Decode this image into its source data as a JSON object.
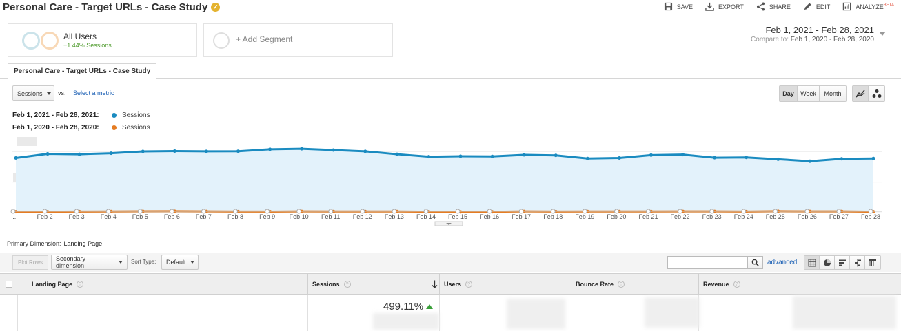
{
  "header": {
    "title": "Personal Care - Target URLs - Case Study",
    "actions": [
      {
        "label": "SAVE",
        "icon": "save-icon"
      },
      {
        "label": "EXPORT",
        "icon": "export-icon"
      },
      {
        "label": "SHARE",
        "icon": "share-icon"
      },
      {
        "label": "EDIT",
        "icon": "edit-icon"
      },
      {
        "label": "ANALYZE",
        "sup": "BETA",
        "icon": "analyze-icon"
      }
    ]
  },
  "segments": {
    "all_users": {
      "name": "All Users",
      "sub": "+1.44% Sessions"
    },
    "add_segment": "+ Add Segment"
  },
  "date_range": {
    "main": "Feb 1, 2021 - Feb 28, 2021",
    "compare_label": "Compare to:",
    "compare_range": "Feb 1, 2020 - Feb 28, 2020"
  },
  "tab": {
    "label": "Personal Care - Target URLs - Case Study"
  },
  "metrics": {
    "primary": "Sessions",
    "vs": "vs.",
    "select_metric": "Select a metric"
  },
  "granularity": {
    "options": [
      "Day",
      "Week",
      "Month"
    ],
    "active": "Day"
  },
  "legend": [
    {
      "range": "Feb 1, 2021 - Feb 28, 2021:",
      "series": "Sessions",
      "color": "#1a8bc0"
    },
    {
      "range": "Feb 1, 2020 - Feb 28, 2020:",
      "series": "Sessions",
      "color": "#e57c22"
    }
  ],
  "chart_data": {
    "type": "line",
    "x": [
      "...",
      "Feb 2",
      "Feb 3",
      "Feb 4",
      "Feb 5",
      "Feb 6",
      "Feb 7",
      "Feb 8",
      "Feb 9",
      "Feb 10",
      "Feb 11",
      "Feb 12",
      "Feb 13",
      "Feb 14",
      "Feb 15",
      "Feb 16",
      "Feb 17",
      "Feb 18",
      "Feb 19",
      "Feb 20",
      "Feb 21",
      "Feb 22",
      "Feb 23",
      "Feb 24",
      "Feb 25",
      "Feb 26",
      "Feb 27",
      "Feb 28"
    ],
    "series": [
      {
        "name": "Sessions",
        "values": [
          1075,
          1155,
          1148,
          1168,
          1203,
          1210,
          1205,
          1207,
          1245,
          1255,
          1230,
          1205,
          1148,
          1100,
          1108,
          1105,
          1135,
          1125,
          1065,
          1075,
          1130,
          1140,
          1080,
          1085,
          1050,
          1010,
          1058,
          1065
        ],
        "color": "#1a8bc0",
        "fill": "#e3f2fb"
      },
      {
        "name": "Sessions",
        "values": [
          20,
          20,
          23,
          25,
          28,
          30,
          26,
          23,
          22,
          26,
          24,
          25,
          24,
          20,
          17,
          18,
          26,
          23,
          25,
          25,
          25,
          27,
          26,
          23,
          29,
          27,
          27,
          20
        ],
        "color": "#e57c22"
      }
    ],
    "ylim": [
      -215,
      1500
    ],
    "grid": true
  },
  "primary_dimension": {
    "label": "Primary Dimension:",
    "value": "Landing Page"
  },
  "table_toolbar": {
    "plot_rows": "Plot Rows",
    "secondary_dimension": "Secondary dimension",
    "sort_type_label": "Sort Type:",
    "sort_type": "Default",
    "advanced": "advanced"
  },
  "table": {
    "columns": [
      {
        "label": "Landing Page"
      },
      {
        "label": "Sessions"
      },
      {
        "label": "Users"
      },
      {
        "label": "Bounce Rate"
      },
      {
        "label": "Revenue"
      }
    ],
    "summary": {
      "sessions_change": "499.11%"
    }
  }
}
